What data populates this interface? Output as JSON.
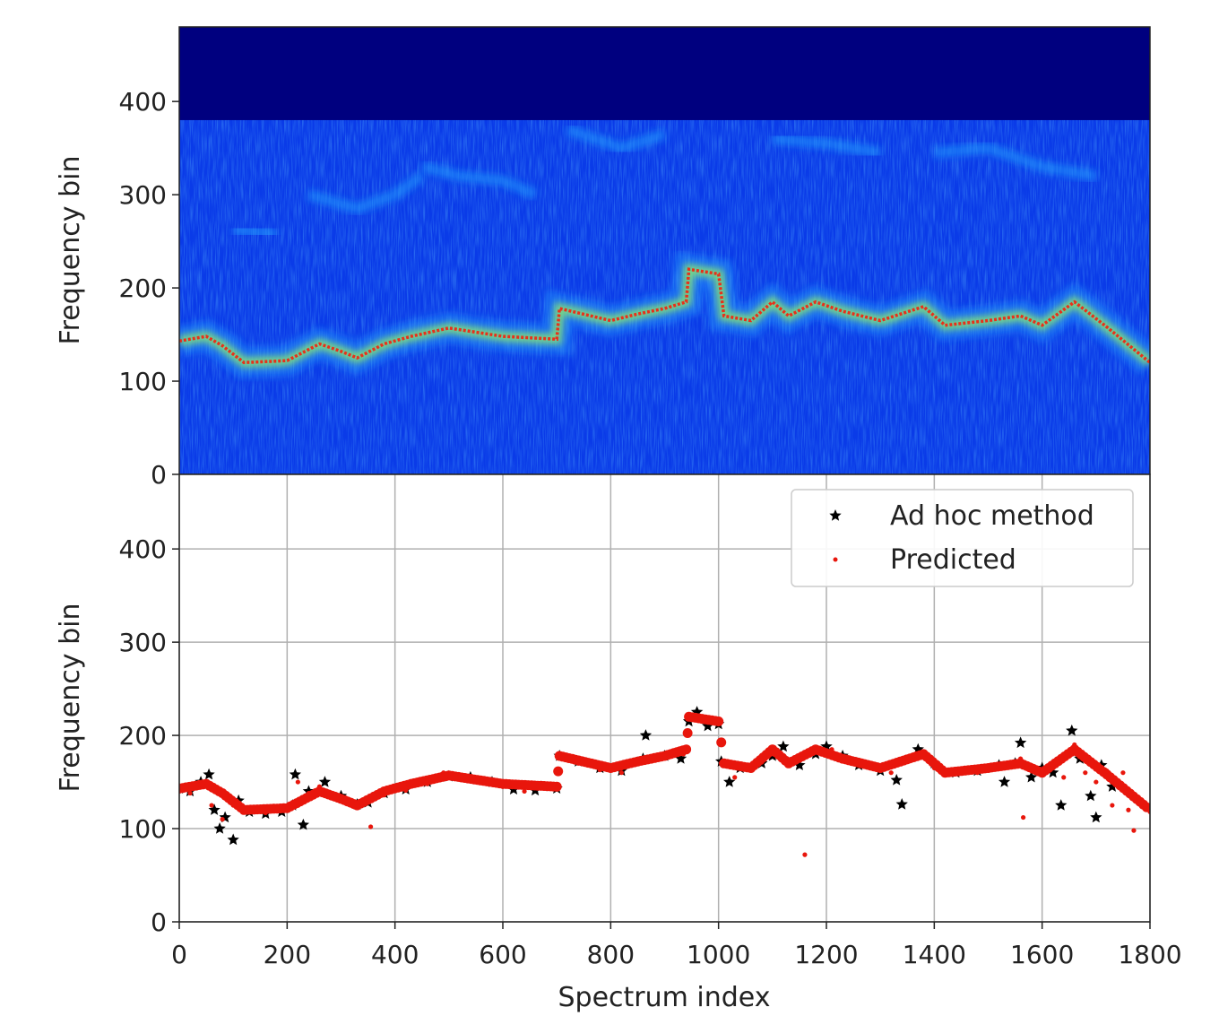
{
  "chart_data": [
    {
      "type": "heatmap",
      "ylabel": "Frequency bin",
      "ylim": [
        0,
        480
      ],
      "xlim": [
        0,
        1800
      ],
      "yticks": [
        "0",
        "100",
        "200",
        "300",
        "400"
      ],
      "colors": {
        "background": "#00007f",
        "base": "#0a3be8",
        "mid": "#1fa0ff",
        "hot": "#9cff5e",
        "peak": "#e8301a"
      },
      "masked_top_from": 380,
      "ridge": [
        [
          0,
          143
        ],
        [
          50,
          148
        ],
        [
          80,
          138
        ],
        [
          120,
          120
        ],
        [
          200,
          122
        ],
        [
          260,
          140
        ],
        [
          300,
          132
        ],
        [
          330,
          125
        ],
        [
          380,
          140
        ],
        [
          430,
          148
        ],
        [
          500,
          157
        ],
        [
          600,
          148
        ],
        [
          700,
          145
        ],
        [
          705,
          178
        ],
        [
          800,
          165
        ],
        [
          850,
          172
        ],
        [
          900,
          178
        ],
        [
          940,
          185
        ],
        [
          945,
          220
        ],
        [
          1000,
          215
        ],
        [
          1010,
          170
        ],
        [
          1060,
          165
        ],
        [
          1100,
          185
        ],
        [
          1130,
          170
        ],
        [
          1180,
          185
        ],
        [
          1230,
          175
        ],
        [
          1300,
          165
        ],
        [
          1380,
          180
        ],
        [
          1420,
          160
        ],
        [
          1500,
          165
        ],
        [
          1560,
          170
        ],
        [
          1600,
          160
        ],
        [
          1660,
          185
        ],
        [
          1720,
          158
        ],
        [
          1800,
          120
        ]
      ],
      "faint_tracks": [
        [
          [
            100,
            263
          ],
          [
            180,
            258
          ]
        ],
        [
          [
            240,
            300
          ],
          [
            330,
            285
          ],
          [
            400,
            300
          ],
          [
            450,
            320
          ]
        ],
        [
          [
            450,
            330
          ],
          [
            520,
            320
          ],
          [
            600,
            315
          ],
          [
            660,
            300
          ]
        ],
        [
          [
            720,
            370
          ],
          [
            820,
            350
          ],
          [
            900,
            365
          ]
        ],
        [
          [
            1100,
            360
          ],
          [
            1200,
            355
          ],
          [
            1300,
            345
          ]
        ],
        [
          [
            1400,
            345
          ],
          [
            1500,
            350
          ],
          [
            1600,
            330
          ],
          [
            1700,
            320
          ]
        ]
      ]
    },
    {
      "type": "scatter",
      "xlabel": "Spectrum index",
      "ylabel": "Frequency bin",
      "xlim": [
        0,
        1800
      ],
      "ylim": [
        0,
        480
      ],
      "xticks": [
        "0",
        "200",
        "400",
        "600",
        "800",
        "1000",
        "1200",
        "1400",
        "1600",
        "1800"
      ],
      "yticks": [
        "0",
        "100",
        "200",
        "300",
        "400"
      ],
      "grid": true,
      "legend_position": "top-right",
      "series": [
        {
          "name": "Ad hoc method",
          "marker": "star",
          "color": "#000000",
          "points": [
            [
              0,
              143
            ],
            [
              20,
              140
            ],
            [
              40,
              150
            ],
            [
              55,
              158
            ],
            [
              65,
              120
            ],
            [
              75,
              100
            ],
            [
              85,
              112
            ],
            [
              100,
              88
            ],
            [
              110,
              130
            ],
            [
              130,
              118
            ],
            [
              160,
              116
            ],
            [
              190,
              118
            ],
            [
              210,
              125
            ],
            [
              215,
              158
            ],
            [
              230,
              104
            ],
            [
              240,
              140
            ],
            [
              270,
              150
            ],
            [
              300,
              135
            ],
            [
              330,
              126
            ],
            [
              350,
              128
            ],
            [
              380,
              138
            ],
            [
              420,
              142
            ],
            [
              460,
              150
            ],
            [
              500,
              156
            ],
            [
              540,
              155
            ],
            [
              580,
              150
            ],
            [
              620,
              142
            ],
            [
              660,
              141
            ],
            [
              700,
              143
            ],
            [
              705,
              178
            ],
            [
              740,
              172
            ],
            [
              780,
              165
            ],
            [
              820,
              162
            ],
            [
              860,
              175
            ],
            [
              865,
              200
            ],
            [
              900,
              178
            ],
            [
              930,
              175
            ],
            [
              945,
              215
            ],
            [
              960,
              225
            ],
            [
              980,
              210
            ],
            [
              1000,
              212
            ],
            [
              1005,
              172
            ],
            [
              1020,
              150
            ],
            [
              1040,
              165
            ],
            [
              1080,
              170
            ],
            [
              1100,
              178
            ],
            [
              1120,
              188
            ],
            [
              1150,
              168
            ],
            [
              1180,
              180
            ],
            [
              1200,
              188
            ],
            [
              1230,
              178
            ],
            [
              1260,
              168
            ],
            [
              1300,
              162
            ],
            [
              1330,
              152
            ],
            [
              1340,
              126
            ],
            [
              1370,
              185
            ],
            [
              1400,
              170
            ],
            [
              1440,
              160
            ],
            [
              1480,
              162
            ],
            [
              1520,
              168
            ],
            [
              1530,
              150
            ],
            [
              1550,
              170
            ],
            [
              1560,
              192
            ],
            [
              1580,
              155
            ],
            [
              1600,
              165
            ],
            [
              1620,
              160
            ],
            [
              1635,
              125
            ],
            [
              1655,
              205
            ],
            [
              1670,
              175
            ],
            [
              1690,
              135
            ],
            [
              1700,
              112
            ],
            [
              1710,
              168
            ],
            [
              1730,
              145
            ]
          ]
        },
        {
          "name": "Predicted",
          "marker": "dot",
          "color": "#e8160c",
          "points": [
            [
              0,
              140
            ],
            [
              20,
              138
            ],
            [
              40,
              148
            ],
            [
              60,
              125
            ],
            [
              80,
              110
            ],
            [
              100,
              125
            ],
            [
              120,
              118
            ],
            [
              160,
              117
            ],
            [
              200,
              120
            ],
            [
              220,
              150
            ],
            [
              240,
              138
            ],
            [
              260,
              145
            ],
            [
              300,
              133
            ],
            [
              340,
              126
            ],
            [
              355,
              102
            ],
            [
              380,
              136
            ],
            [
              420,
              141
            ],
            [
              460,
              148
            ],
            [
              490,
              160
            ],
            [
              520,
              157
            ],
            [
              560,
              152
            ],
            [
              600,
              145
            ],
            [
              640,
              140
            ],
            [
              700,
              145
            ],
            [
              706,
              176
            ],
            [
              740,
              170
            ],
            [
              780,
              163
            ],
            [
              820,
              160
            ],
            [
              860,
              172
            ],
            [
              900,
              176
            ],
            [
              935,
              180
            ],
            [
              950,
              218
            ],
            [
              970,
              220
            ],
            [
              990,
              215
            ],
            [
              1005,
              170
            ],
            [
              1030,
              155
            ],
            [
              1060,
              165
            ],
            [
              1100,
              185
            ],
            [
              1130,
              168
            ],
            [
              1160,
              72
            ],
            [
              1180,
              182
            ],
            [
              1210,
              185
            ],
            [
              1240,
              172
            ],
            [
              1280,
              165
            ],
            [
              1320,
              160
            ],
            [
              1360,
              178
            ],
            [
              1400,
              165
            ],
            [
              1440,
              160
            ],
            [
              1480,
              160
            ],
            [
              1520,
              165
            ],
            [
              1560,
              175
            ],
            [
              1565,
              112
            ],
            [
              1600,
              162
            ],
            [
              1640,
              155
            ],
            [
              1660,
              190
            ],
            [
              1680,
              160
            ],
            [
              1700,
              150
            ],
            [
              1720,
              162
            ],
            [
              1730,
              125
            ],
            [
              1750,
              160
            ],
            [
              1760,
              120
            ],
            [
              1770,
              98
            ],
            [
              1780,
              130
            ],
            [
              1790,
              122
            ],
            [
              1800,
              118
            ]
          ]
        }
      ]
    }
  ]
}
